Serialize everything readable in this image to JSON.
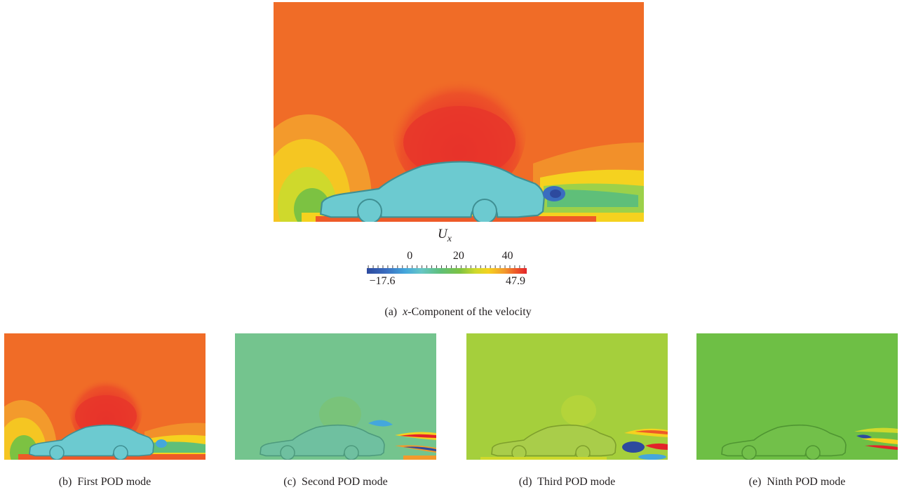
{
  "figure": {
    "main_panel": {
      "field_symbol": "U",
      "field_subscript": "x",
      "caption_prefix": "(a)",
      "caption_symbol": "x",
      "caption_text": "-Component of the velocity"
    },
    "colorbar": {
      "min_label": "−17.6",
      "max_label": "47.9",
      "ticks": [
        {
          "value": 0,
          "label": "0"
        },
        {
          "value": 20,
          "label": "20"
        },
        {
          "value": 40,
          "label": "40"
        }
      ],
      "range": [
        -17.6,
        47.9
      ],
      "colormap": [
        "#2d4a9e",
        "#44a7dc",
        "#66c6c6",
        "#5fbf79",
        "#7cc242",
        "#cfd92c",
        "#f5d21f",
        "#f29a2c",
        "#ee5a28",
        "#e3232a"
      ]
    },
    "sub_panels": [
      {
        "label": "(b)",
        "caption": "First POD mode",
        "background": "#f06c27"
      },
      {
        "label": "(c)",
        "caption": "Second POD mode",
        "background": "#74c48e"
      },
      {
        "label": "(d)",
        "caption": "Third POD mode",
        "background": "#a5cf3c"
      },
      {
        "label": "(e)",
        "caption": "Ninth POD mode",
        "background": "#6ebf45"
      }
    ],
    "colors": {
      "car_body": "#6ccad0",
      "car_outline": "#3f8f93",
      "free_stream": "#f06c27"
    }
  }
}
